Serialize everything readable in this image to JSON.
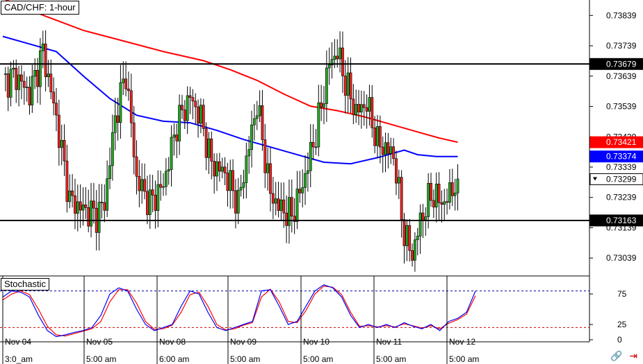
{
  "chart_data": {
    "type": "candlestick",
    "title": "CAD/CHF: 1-hour",
    "ylim": [
      0.7298,
      0.7389
    ],
    "price_ticks": [
      "0.73839",
      "0.73739",
      "0.73639",
      "0.73539",
      "0.73439",
      "0.73339",
      "0.73239",
      "0.73139",
      "0.73039"
    ],
    "horizontal_lines": [
      {
        "value": 0.73679,
        "label": "0.73679"
      },
      {
        "value": 0.73163,
        "label": "0.73163"
      }
    ],
    "price_tags": [
      {
        "value": 0.73679,
        "label": "0.73679",
        "color": "#000000"
      },
      {
        "value": 0.73421,
        "label": "0.73421",
        "color": "#ff0000"
      },
      {
        "value": 0.73374,
        "label": "0.73374",
        "color": "#0000ff"
      },
      {
        "value": 0.73299,
        "label": "0.73299",
        "color": "#ffffff"
      },
      {
        "value": 0.73163,
        "label": "0.73163",
        "color": "#000000"
      }
    ],
    "x_dates": [
      "Nov 04",
      "Nov 05",
      "Nov 08",
      "Nov 09",
      "Nov 10",
      "Nov 11",
      "Nov 12"
    ],
    "x_times": [
      "3:0_am",
      "5:00 am",
      "6:00 am",
      "5:00 am",
      "5:00 am",
      "5:00 am",
      "5:00 am"
    ],
    "moving_averages": [
      {
        "color": "#ff0000",
        "points": [
          [
            0,
            0.73895
          ],
          [
            15,
            0.7384
          ],
          [
            30,
            0.7379
          ],
          [
            45,
            0.73755
          ],
          [
            60,
            0.7372
          ],
          [
            75,
            0.7369
          ],
          [
            85,
            0.7366
          ],
          [
            95,
            0.73625
          ],
          [
            105,
            0.7358
          ],
          [
            115,
            0.7354
          ],
          [
            125,
            0.73525
          ],
          [
            135,
            0.73505
          ],
          [
            145,
            0.7348
          ],
          [
            155,
            0.73455
          ],
          [
            163,
            0.73435
          ],
          [
            170,
            0.73421
          ]
        ]
      },
      {
        "color": "#0000ff",
        "points": [
          [
            0,
            0.7377
          ],
          [
            10,
            0.73745
          ],
          [
            20,
            0.7372
          ],
          [
            30,
            0.7364
          ],
          [
            40,
            0.73565
          ],
          [
            50,
            0.7351
          ],
          [
            60,
            0.7349
          ],
          [
            70,
            0.73485
          ],
          [
            80,
            0.7346
          ],
          [
            90,
            0.7343
          ],
          [
            100,
            0.73405
          ],
          [
            110,
            0.7338
          ],
          [
            120,
            0.73355
          ],
          [
            130,
            0.7335
          ],
          [
            140,
            0.7337
          ],
          [
            150,
            0.73395
          ],
          [
            155,
            0.7338
          ],
          [
            162,
            0.73374
          ],
          [
            170,
            0.73374
          ]
        ]
      }
    ],
    "candle_anchors": [
      [
        0,
        0.7362
      ],
      [
        5,
        0.7364
      ],
      [
        10,
        0.7358
      ],
      [
        15,
        0.7372
      ],
      [
        20,
        0.735
      ],
      [
        25,
        0.7323
      ],
      [
        30,
        0.732
      ],
      [
        35,
        0.7318
      ],
      [
        38,
        0.7322
      ],
      [
        42,
        0.735
      ],
      [
        46,
        0.7365
      ],
      [
        50,
        0.733
      ],
      [
        55,
        0.7322
      ],
      [
        60,
        0.7328
      ],
      [
        65,
        0.7348
      ],
      [
        70,
        0.7357
      ],
      [
        74,
        0.735
      ],
      [
        78,
        0.7335
      ],
      [
        83,
        0.7332
      ],
      [
        88,
        0.7322
      ],
      [
        95,
        0.7355
      ],
      [
        100,
        0.7325
      ],
      [
        104,
        0.732
      ],
      [
        108,
        0.7318
      ],
      [
        112,
        0.7328
      ],
      [
        117,
        0.7345
      ],
      [
        122,
        0.7368
      ],
      [
        125,
        0.7372
      ],
      [
        128,
        0.7362
      ],
      [
        132,
        0.7352
      ],
      [
        136,
        0.7355
      ],
      [
        140,
        0.7342
      ],
      [
        146,
        0.7338
      ],
      [
        150,
        0.7312
      ],
      [
        153,
        0.7305
      ],
      [
        156,
        0.7316
      ],
      [
        160,
        0.7325
      ],
      [
        165,
        0.7322
      ],
      [
        170,
        0.733
      ]
    ],
    "stochastic": {
      "label": "Stochastic",
      "levels": [
        80,
        20
      ],
      "ticks": [
        "75",
        "25",
        "0"
      ],
      "k": [
        70,
        80,
        78,
        70,
        40,
        15,
        5,
        8,
        12,
        15,
        20,
        40,
        75,
        85,
        80,
        50,
        25,
        15,
        20,
        25,
        55,
        80,
        75,
        45,
        20,
        15,
        20,
        25,
        30,
        80,
        82,
        55,
        25,
        30,
        55,
        80,
        90,
        85,
        70,
        40,
        20,
        25,
        20,
        25,
        20,
        28,
        22,
        18,
        25,
        15,
        30,
        35,
        45,
        80
      ],
      "d": [
        65,
        75,
        80,
        74,
        50,
        22,
        8,
        6,
        10,
        14,
        18,
        30,
        62,
        82,
        82,
        60,
        30,
        17,
        18,
        24,
        45,
        74,
        78,
        55,
        25,
        16,
        18,
        24,
        28,
        70,
        83,
        62,
        30,
        28,
        48,
        75,
        88,
        86,
        74,
        45,
        22,
        23,
        21,
        23,
        21,
        26,
        23,
        19,
        23,
        18,
        27,
        33,
        42,
        72
      ]
    }
  }
}
